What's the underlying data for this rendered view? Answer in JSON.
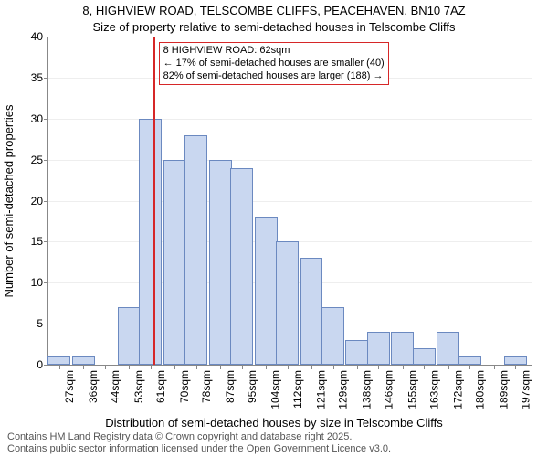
{
  "title_line1": "8, HIGHVIEW ROAD, TELSCOMBE CLIFFS, PEACEHAVEN, BN10 7AZ",
  "title_line2": "Size of property relative to semi-detached houses in Telscombe Cliffs",
  "ylabel": "Number of semi-detached properties",
  "xlabel": "Distribution of semi-detached houses by size in Telscombe Cliffs",
  "footer_line1": "Contains HM Land Registry data © Crown copyright and database right 2025.",
  "footer_line2": "Contains public sector information licensed under the Open Government Licence v3.0.",
  "chart": {
    "type": "histogram",
    "background_color": "#ffffff",
    "grid_color": "#eeeeee",
    "axis_color": "#888888",
    "bar_fill": "#c9d7f0",
    "bar_border": "#6b89c0",
    "ref_line_color": "#d62728",
    "ref_line_x": 62,
    "xlim": [
      23,
      203
    ],
    "ylim": [
      0,
      40
    ],
    "ytick_step": 5,
    "yticks": [
      0,
      5,
      10,
      15,
      20,
      25,
      30,
      35,
      40
    ],
    "xtick_labels": [
      "27sqm",
      "36sqm",
      "44sqm",
      "53sqm",
      "61sqm",
      "70sqm",
      "78sqm",
      "87sqm",
      "95sqm",
      "104sqm",
      "112sqm",
      "121sqm",
      "129sqm",
      "138sqm",
      "146sqm",
      "155sqm",
      "163sqm",
      "172sqm",
      "180sqm",
      "189sqm",
      "197sqm"
    ],
    "xtick_values": [
      27,
      36,
      44,
      53,
      61,
      70,
      78,
      87,
      95,
      104,
      112,
      121,
      129,
      138,
      146,
      155,
      163,
      172,
      180,
      189,
      197
    ],
    "bar_width_sqm": 8.5,
    "bars": [
      {
        "x": 27,
        "count": 1
      },
      {
        "x": 36,
        "count": 1
      },
      {
        "x": 44,
        "count": 0
      },
      {
        "x": 53,
        "count": 7
      },
      {
        "x": 61,
        "count": 30
      },
      {
        "x": 70,
        "count": 25
      },
      {
        "x": 78,
        "count": 28
      },
      {
        "x": 87,
        "count": 25
      },
      {
        "x": 95,
        "count": 24
      },
      {
        "x": 104,
        "count": 18
      },
      {
        "x": 112,
        "count": 15
      },
      {
        "x": 121,
        "count": 13
      },
      {
        "x": 129,
        "count": 7
      },
      {
        "x": 138,
        "count": 3
      },
      {
        "x": 146,
        "count": 4
      },
      {
        "x": 155,
        "count": 4
      },
      {
        "x": 163,
        "count": 2
      },
      {
        "x": 172,
        "count": 4
      },
      {
        "x": 180,
        "count": 1
      },
      {
        "x": 189,
        "count": 0
      },
      {
        "x": 197,
        "count": 1
      }
    ],
    "annotation": {
      "line1": "8 HIGHVIEW ROAD: 62sqm",
      "line2": "← 17% of semi-detached houses are smaller (40)",
      "line3": "82% of semi-detached houses are larger (188) →",
      "border_color": "#d62728",
      "bg_color": "#ffffff",
      "fontsize": 11
    }
  }
}
